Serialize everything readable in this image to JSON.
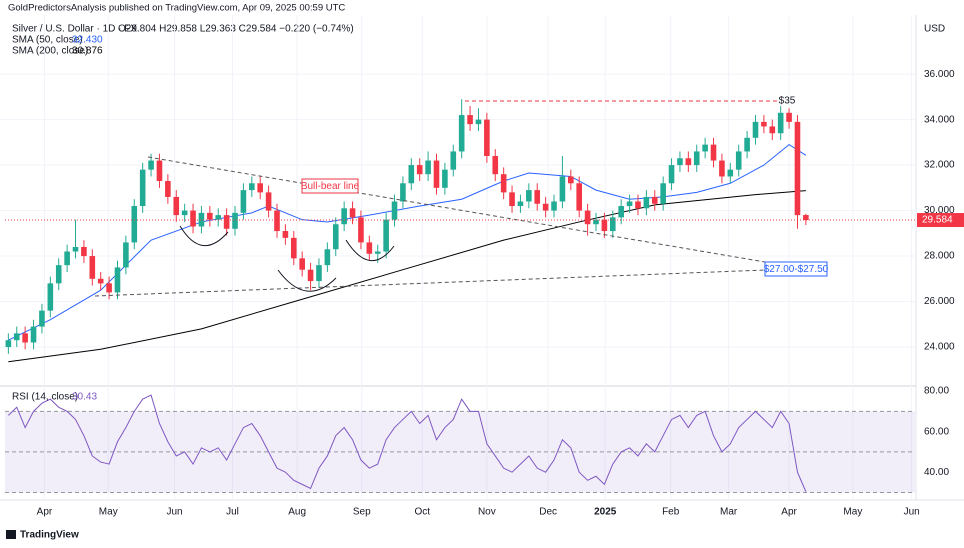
{
  "header": {
    "publisher": "GoldPredictorsAnalysis published on TradingView.com, Apr 09, 2025 00:59 UTC",
    "symbol": "Silver / U.S. Dollar · 1D · FX",
    "ohlc": "O29.804 H29.858 L29.363 C29.584 −0.220 (−0.74%)",
    "currency": "USD",
    "brand": "TradingView"
  },
  "chart_data": {
    "type": "candlestick",
    "up_color": "#22ab94",
    "down_color": "#f23645",
    "candles": {
      "open": [
        24.0,
        24.3,
        24.6,
        24.2,
        24.9,
        25.6,
        26.8,
        27.6,
        28.2,
        28.4,
        28.0,
        27.0,
        26.8,
        26.4,
        27.5,
        28.6,
        30.2,
        31.8,
        32.2,
        31.3,
        30.6,
        29.8,
        30.0,
        29.3,
        29.9,
        29.6,
        29.8,
        29.2,
        29.9,
        30.9,
        31.2,
        30.8,
        30.0,
        29.1,
        28.8,
        27.9,
        27.4,
        26.9,
        27.6,
        28.3,
        29.4,
        30.1,
        29.7,
        28.6,
        28.1,
        28.2,
        29.6,
        30.4,
        31.2,
        32.0,
        31.6,
        32.2,
        31.0,
        31.8,
        32.6,
        34.2,
        33.8,
        34.0,
        32.4,
        31.6,
        30.8,
        30.2,
        30.4,
        30.9,
        30.3,
        30.0,
        30.4,
        31.5,
        31.2,
        30.0,
        29.4,
        29.6,
        29.1,
        29.7,
        30.2,
        30.4,
        30.1,
        30.6,
        30.3,
        31.2,
        32.0,
        32.3,
        32.0,
        32.6,
        32.9,
        32.2,
        31.5,
        31.8,
        32.6,
        33.2,
        33.9,
        33.7,
        33.4,
        34.3,
        33.9,
        29.804
      ],
      "high": [
        24.6,
        24.9,
        24.9,
        25.2,
        25.9,
        27.1,
        27.9,
        28.5,
        29.6,
        28.7,
        28.3,
        27.3,
        27.1,
        27.8,
        28.9,
        30.5,
        32.1,
        32.5,
        32.5,
        31.6,
        30.9,
        30.3,
        30.3,
        30.2,
        30.2,
        30.1,
        30.1,
        30.2,
        31.2,
        31.5,
        31.5,
        31.1,
        30.3,
        29.4,
        29.1,
        28.2,
        27.7,
        27.9,
        28.6,
        29.7,
        30.4,
        30.4,
        30.0,
        28.9,
        28.5,
        29.9,
        30.7,
        31.5,
        32.3,
        32.3,
        32.6,
        32.5,
        32.1,
        32.9,
        34.9,
        34.6,
        34.5,
        34.3,
        32.7,
        31.9,
        31.1,
        30.7,
        31.2,
        31.2,
        30.6,
        30.7,
        32.4,
        31.8,
        31.5,
        30.3,
        29.9,
        29.9,
        30.0,
        30.5,
        30.7,
        30.7,
        30.9,
        30.9,
        31.5,
        32.3,
        32.6,
        32.6,
        32.9,
        33.2,
        33.2,
        32.5,
        32.1,
        32.9,
        33.5,
        34.2,
        34.2,
        34.0,
        34.6,
        34.5,
        34.2,
        29.858
      ],
      "low": [
        23.7,
        24.0,
        23.9,
        23.9,
        24.6,
        25.3,
        26.5,
        27.3,
        27.9,
        27.7,
        26.7,
        26.5,
        26.1,
        26.1,
        27.2,
        28.3,
        29.9,
        31.5,
        31.0,
        30.3,
        29.5,
        29.5,
        29.0,
        29.0,
        29.3,
        29.3,
        28.9,
        28.9,
        29.6,
        30.6,
        30.5,
        29.7,
        28.8,
        28.5,
        27.6,
        27.1,
        26.5,
        26.6,
        27.3,
        28.0,
        29.1,
        29.4,
        28.3,
        27.8,
        27.7,
        27.9,
        29.3,
        30.1,
        30.9,
        31.3,
        31.3,
        30.7,
        30.7,
        31.5,
        32.3,
        33.5,
        33.5,
        32.1,
        31.3,
        30.5,
        29.9,
        29.9,
        30.1,
        30.0,
        29.7,
        29.7,
        30.1,
        30.9,
        29.7,
        28.9,
        29.1,
        28.8,
        28.8,
        29.4,
        29.9,
        29.8,
        29.8,
        30.0,
        30.0,
        30.9,
        31.7,
        31.7,
        31.7,
        32.3,
        31.9,
        31.2,
        31.2,
        31.5,
        32.3,
        32.9,
        33.4,
        33.1,
        33.1,
        33.6,
        29.2,
        29.363
      ],
      "close": [
        24.3,
        24.6,
        24.2,
        24.9,
        25.6,
        26.8,
        27.6,
        28.2,
        28.4,
        28.0,
        27.0,
        26.8,
        26.4,
        27.5,
        28.6,
        30.2,
        31.8,
        32.2,
        31.3,
        30.6,
        29.8,
        30.0,
        29.3,
        29.9,
        29.6,
        29.8,
        29.2,
        29.9,
        30.9,
        31.2,
        30.8,
        30.0,
        29.1,
        28.8,
        27.9,
        27.4,
        26.9,
        27.6,
        28.3,
        29.4,
        30.1,
        29.7,
        28.6,
        28.1,
        28.2,
        29.6,
        30.4,
        31.2,
        32.0,
        31.6,
        32.2,
        31.0,
        31.8,
        32.6,
        34.2,
        33.8,
        34.0,
        32.4,
        31.6,
        30.8,
        30.2,
        30.4,
        30.9,
        30.3,
        30.0,
        30.4,
        31.5,
        31.2,
        30.0,
        29.4,
        29.6,
        29.1,
        29.7,
        30.2,
        30.4,
        30.1,
        30.6,
        30.3,
        31.2,
        32.0,
        32.3,
        32.0,
        32.6,
        32.9,
        32.2,
        31.5,
        31.8,
        32.6,
        33.2,
        33.9,
        33.7,
        33.4,
        34.3,
        33.9,
        29.8,
        29.584
      ]
    },
    "series": [
      {
        "name": "SMA (50, close)",
        "last_label": "32.430",
        "color": "#2962ff",
        "x": [
          0,
          5,
          11,
          17,
          23,
          29,
          31,
          35,
          38,
          43,
          49,
          54,
          59,
          62,
          67,
          70,
          74,
          78,
          82,
          86,
          90,
          93,
          95
        ],
        "values": [
          24.3,
          25.2,
          26.5,
          28.7,
          29.5,
          29.9,
          30.2,
          29.6,
          29.5,
          29.8,
          30.2,
          30.5,
          31.3,
          31.65,
          31.5,
          30.9,
          30.5,
          30.6,
          30.8,
          31.2,
          32.0,
          32.9,
          32.43
        ]
      },
      {
        "name": "SMA (200, close)",
        "last_label": "30.876",
        "color": "#000000",
        "x": [
          0,
          11,
          23,
          35,
          47,
          59,
          68,
          77,
          89,
          95
        ],
        "values": [
          23.35,
          23.9,
          24.8,
          26.1,
          27.4,
          28.7,
          29.5,
          30.25,
          30.7,
          30.876
        ]
      }
    ],
    "xlim": [
      -0.4,
      108
    ],
    "xticks": [
      {
        "value": 4.3,
        "label": "Apr"
      },
      {
        "value": 11.9,
        "label": "May"
      },
      {
        "value": 19.8,
        "label": "Jun"
      },
      {
        "value": 26.7,
        "label": "Jul"
      },
      {
        "value": 34.4,
        "label": "Aug"
      },
      {
        "value": 42.1,
        "label": "Sep"
      },
      {
        "value": 49.3,
        "label": "Oct"
      },
      {
        "value": 57.0,
        "label": "Nov"
      },
      {
        "value": 64.3,
        "label": "Dec"
      },
      {
        "value": 71.1,
        "label": "2025"
      },
      {
        "value": 78.9,
        "label": "Feb"
      },
      {
        "value": 85.8,
        "label": "Mar"
      },
      {
        "value": 93.0,
        "label": "Apr"
      },
      {
        "value": 100.6,
        "label": "May"
      },
      {
        "value": 107.6,
        "label": "Jun"
      }
    ],
    "ylim": [
      22.33,
      38.6
    ],
    "yticks": [
      {
        "value": 24,
        "label": "24.000"
      },
      {
        "value": 26,
        "label": "26.000"
      },
      {
        "value": 28,
        "label": "28.000"
      },
      {
        "value": 30,
        "label": "30.000"
      },
      {
        "value": 32,
        "label": "32.000"
      },
      {
        "value": 34,
        "label": "34.000"
      },
      {
        "value": 36,
        "label": "36.000"
      }
    ],
    "annotations": {
      "trend": "Bull-bear line",
      "top": "$35",
      "target": "$27.00-$27.50"
    },
    "rsi": {
      "name": "RSI (14, close)",
      "last_label": "30.43",
      "color": "#7e57c2",
      "ylim": [
        26.3,
        81.5
      ],
      "yticks": [
        {
          "value": 40,
          "label": "40.00"
        },
        {
          "value": 60,
          "label": "60.00"
        },
        {
          "value": 80,
          "label": "80.00"
        }
      ],
      "levels": [
        70,
        50,
        30
      ],
      "values": [
        68,
        72,
        62,
        70,
        74,
        76,
        72,
        70,
        66,
        58,
        48,
        45,
        44,
        55,
        62,
        70,
        76,
        78,
        64,
        55,
        48,
        50,
        44,
        52,
        50,
        52,
        46,
        54,
        62,
        64,
        58,
        50,
        42,
        40,
        36,
        34,
        32,
        42,
        48,
        58,
        62,
        56,
        46,
        42,
        44,
        56,
        62,
        66,
        70,
        64,
        68,
        56,
        62,
        66,
        76,
        70,
        70,
        54,
        48,
        42,
        40,
        44,
        48,
        42,
        40,
        46,
        56,
        52,
        40,
        36,
        38,
        34,
        44,
        50,
        52,
        48,
        54,
        50,
        58,
        66,
        68,
        62,
        68,
        70,
        58,
        50,
        54,
        62,
        66,
        70,
        66,
        62,
        70,
        64,
        40,
        30.43
      ]
    }
  }
}
